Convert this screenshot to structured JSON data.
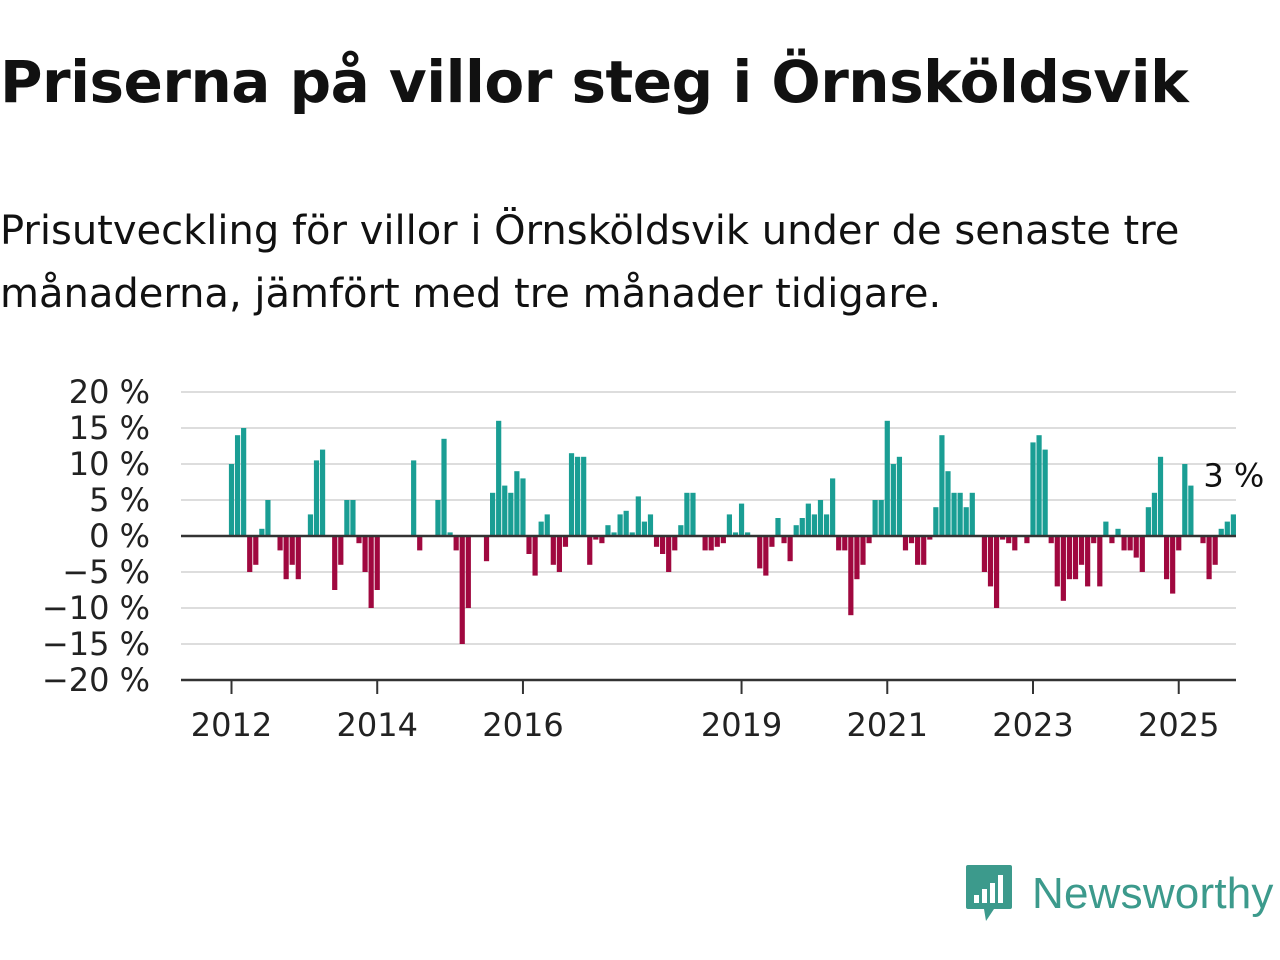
{
  "title": "Priserna på villor steg i Örnsköldsvik",
  "subtitle": "Prisutveckling för villor i Örnsköldsvik under de senaste tre månaderna, jämfört med tre månader tidigare.",
  "brand": {
    "name": "Newsworthy",
    "icon": "newsworthy-logo-icon"
  },
  "colors": {
    "positive": "#1a9e94",
    "negative": "#a0083f",
    "zero_line": "#333333",
    "grid": "#dddddd",
    "brand": "#3c9a8c"
  },
  "chart_data": {
    "type": "bar",
    "title": "Priserna på villor steg i Örnsköldsvik",
    "xlabel": "",
    "ylabel": "",
    "ylim": [
      -20,
      20
    ],
    "y_ticks": [
      20,
      15,
      10,
      5,
      0,
      -5,
      -10,
      -15,
      -20
    ],
    "y_tick_labels": [
      "20 %",
      "15 %",
      "10 %",
      "5 %",
      "0 %",
      "−5 %",
      "−10 %",
      "−15 %",
      "−20 %"
    ],
    "x_ticks": [
      "2012-01",
      "2014-01",
      "2016-01",
      "2019-01",
      "2021-01",
      "2023-01",
      "2025-01"
    ],
    "x_tick_labels": [
      "2012",
      "2014",
      "2016",
      "2019",
      "2021",
      "2023",
      "2025"
    ],
    "grid": true,
    "start_month": "2012-01",
    "last_value_label": "3 %",
    "values": [
      10,
      14,
      15,
      -5,
      -4,
      1,
      5,
      0,
      -2,
      -6,
      -4,
      -6,
      0,
      3,
      10.5,
      12,
      0,
      -7.5,
      -4,
      5,
      5,
      -1,
      -5,
      -10,
      -7.5,
      0,
      0,
      0,
      0,
      0,
      10.5,
      -2,
      0,
      0,
      5,
      13.5,
      0.5,
      -2,
      -15,
      -10,
      0,
      0,
      -3.5,
      6,
      16,
      7,
      6,
      9,
      8,
      -2.5,
      -5.5,
      2,
      3,
      -4,
      -5,
      -1.5,
      11.5,
      11,
      11,
      -4,
      -0.5,
      -1,
      1.5,
      0.5,
      3,
      3.5,
      0.5,
      5.5,
      2,
      3,
      -1.5,
      -2.5,
      -5,
      -2,
      1.5,
      6,
      6,
      0,
      -2,
      -2,
      -1.5,
      -1,
      3,
      0.5,
      4.5,
      0.5,
      0,
      -4.5,
      -5.5,
      -1.5,
      2.5,
      -1,
      -3.5,
      1.5,
      2.5,
      4.5,
      3,
      5,
      3,
      8,
      -2,
      -2,
      -11,
      -6,
      -4,
      -1,
      5,
      5,
      16,
      10,
      11,
      -2,
      -1,
      -4,
      -4,
      -0.5,
      4,
      14,
      9,
      6,
      6,
      4,
      6,
      0,
      -5,
      -7,
      -10,
      -0.5,
      -1,
      -2,
      0,
      -1,
      13,
      14,
      12,
      -1,
      -7,
      -9,
      -6,
      -6,
      -4,
      -7,
      -1,
      -7,
      2,
      -1,
      1,
      -2,
      -2,
      -3,
      -5,
      4,
      6,
      11,
      -6,
      -8,
      -2,
      10,
      7,
      0,
      -1,
      -6,
      -4,
      1,
      2,
      3
    ]
  }
}
